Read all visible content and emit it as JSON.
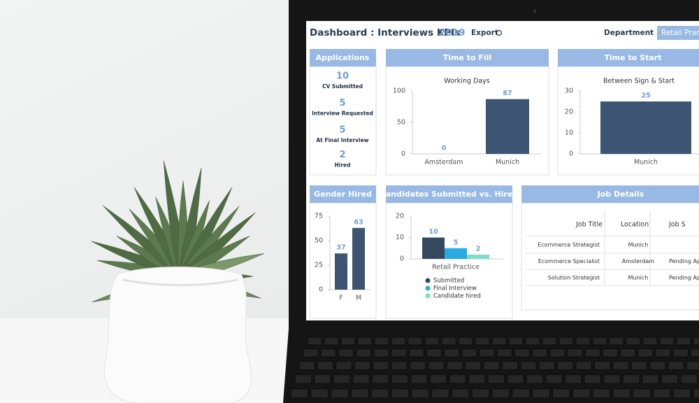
{
  "header": {
    "title": "Dashboard : Interviews KPIs",
    "year": "2019",
    "export": "Export",
    "department_label": "Department :",
    "department": "Retail Pract"
  },
  "applications": {
    "title": "Applications",
    "items": [
      {
        "value": "10",
        "label": "CV Submitted"
      },
      {
        "value": "5",
        "label": "Interview Requested"
      },
      {
        "value": "5",
        "label": "At Final Interview"
      },
      {
        "value": "2",
        "label": "Hired"
      }
    ]
  },
  "chart_data": [
    {
      "type": "bar",
      "title": "Time to Fill",
      "subtitle": "Working Days",
      "categories": [
        "Amsterdam",
        "Munich"
      ],
      "values": [
        0,
        87
      ],
      "color": "#3d5573",
      "ylim": [
        0,
        100
      ],
      "yticks": [
        0,
        50,
        100
      ]
    },
    {
      "type": "bar",
      "title": "Time to Start",
      "subtitle": "Between Sign & Start",
      "categories": [
        "Munich"
      ],
      "values": [
        25
      ],
      "color": "#3d5573",
      "ylim": [
        0,
        30
      ],
      "yticks": [
        0,
        10,
        20,
        30
      ]
    },
    {
      "type": "bar",
      "title": "Gender Hired",
      "categories": [
        "F",
        "M"
      ],
      "values": [
        37,
        63
      ],
      "color": "#3d5573",
      "ylim": [
        0,
        75
      ],
      "yticks": [
        0,
        25,
        50,
        75
      ]
    },
    {
      "type": "grouped_bar",
      "title": "Candidates Submitted vs. Hired",
      "categories": [
        "Retail Practice"
      ],
      "series": [
        {
          "name": "Submitted",
          "color": "#34495e",
          "values": [
            10
          ]
        },
        {
          "name": "Final Interview",
          "color": "#29abe2",
          "values": [
            5
          ]
        },
        {
          "name": "Candidate hired",
          "color": "#7fdcc8",
          "values": [
            2
          ]
        }
      ],
      "ylim": [
        0,
        20
      ],
      "yticks": [
        0,
        10,
        20
      ]
    }
  ],
  "job_details": {
    "title": "Job Details",
    "columns": [
      "Job Title",
      "Location",
      "Job S"
    ],
    "rows": [
      [
        "Ecommerce Strategist",
        "Munich"
      ],
      [
        "Ecommerce Specialist",
        "Amsterdam",
        "Pending App"
      ],
      [
        "Solution Strategist",
        "Munich",
        "Pending App"
      ]
    ]
  }
}
